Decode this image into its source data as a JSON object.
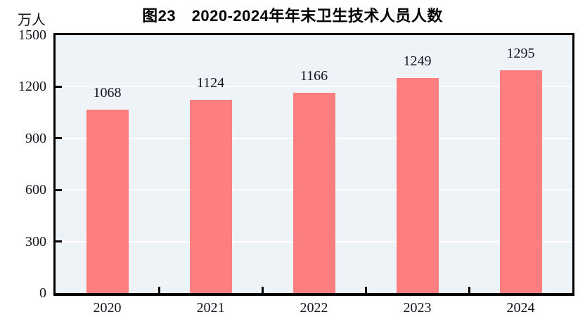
{
  "chart_data": {
    "type": "bar",
    "title": "图23　2020-2024年年末卫生技术人员人数",
    "unit_label": "万人",
    "categories": [
      "2020",
      "2021",
      "2022",
      "2023",
      "2024"
    ],
    "values": [
      1068,
      1124,
      1166,
      1249,
      1295
    ],
    "ylim": [
      0,
      1500
    ],
    "yticks": [
      0,
      300,
      600,
      900,
      1200,
      1500
    ],
    "grid": true,
    "legend": "none",
    "bar_color": "#FC7E7E",
    "plot_bg_color": "#EEF3F8",
    "gridline_color": "#FFFFFF",
    "axis_color": "#000000"
  }
}
